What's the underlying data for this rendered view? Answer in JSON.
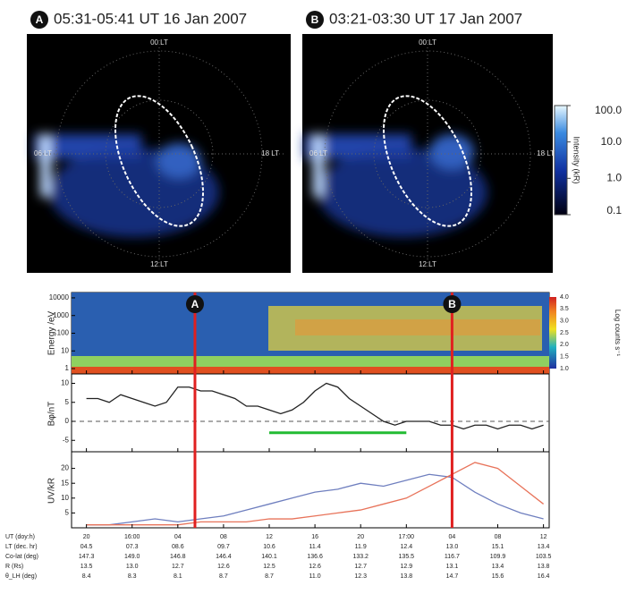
{
  "panels": [
    {
      "letter": "A",
      "title": "05:31-05:41 UT 16 Jan 2007",
      "lt": [
        "00 LT",
        "06 LT",
        "18 LT",
        "12 LT"
      ]
    },
    {
      "letter": "B",
      "title": "03:21-03:30 UT 17 Jan 2007",
      "lt": [
        "00 LT",
        "06 LT",
        "18 LT",
        "12 LT"
      ]
    }
  ],
  "colorbar": {
    "label": "Intensity (kR)",
    "ticks": [
      {
        "value": 100,
        "label": "100.0"
      },
      {
        "value": 10,
        "label": "10.0"
      },
      {
        "value": 1,
        "label": "1.0"
      },
      {
        "value": 0.1,
        "label": "0.1"
      }
    ]
  },
  "markers": [
    {
      "label": "A",
      "x": 9.5
    },
    {
      "label": "B",
      "x": 32
    }
  ],
  "chart_data": [
    {
      "type": "spectrogram",
      "ylabel": "Energy /eV",
      "log": true,
      "xlim": [
        -1.3,
        40.5
      ],
      "ylim": [
        0.5,
        20000
      ],
      "yticks": [
        1,
        10,
        100,
        1000,
        10000
      ],
      "colorbar": {
        "label": "Log counts s⁻¹",
        "ticks": [
          {
            "value": 4,
            "label": "4.0"
          },
          {
            "value": 3.5,
            "label": "3.5"
          },
          {
            "value": 3,
            "label": "3.0"
          },
          {
            "value": 2.5,
            "label": "2.5"
          },
          {
            "value": 2,
            "label": "2.0"
          },
          {
            "value": 1.5,
            "label": "1.5"
          },
          {
            "value": 1,
            "label": "1.0"
          }
        ]
      }
    },
    {
      "type": "line",
      "ylabel": "Bφ/nT",
      "xlim": [
        -1.3,
        40.5
      ],
      "ylim": [
        -8,
        12
      ],
      "yticks": [
        -5,
        0,
        5,
        10
      ],
      "zero_line": true,
      "x": [
        0,
        1,
        2,
        3,
        4,
        5,
        6,
        7,
        8,
        9,
        10,
        11,
        12,
        13,
        14,
        15,
        16,
        17,
        18,
        19,
        20,
        21,
        22,
        23,
        24,
        25,
        26,
        27,
        28,
        29,
        30,
        31,
        32,
        33,
        34,
        35,
        36,
        37,
        38,
        39,
        40
      ],
      "series": [
        {
          "color": "#222222",
          "values": [
            6,
            6,
            5,
            7,
            6,
            5,
            4,
            5,
            9,
            9,
            8,
            8,
            7,
            6,
            4,
            4,
            3,
            2,
            3,
            5,
            8,
            10,
            9,
            6,
            4,
            2,
            0,
            -1,
            0,
            0,
            0,
            -1,
            -1,
            -2,
            -1,
            -1,
            -2,
            -1,
            -1,
            -2,
            -1
          ]
        }
      ],
      "interval": {
        "color": "#22bb33",
        "x": [
          16,
          28
        ],
        "y": -3
      }
    },
    {
      "type": "line",
      "ylabel": "UV/kR",
      "xlim": [
        -1.3,
        40.5
      ],
      "ylim": [
        0,
        25
      ],
      "yticks": [
        5,
        10,
        15,
        20
      ],
      "x": [
        0,
        2,
        4,
        6,
        8,
        10,
        12,
        14,
        16,
        18,
        20,
        22,
        24,
        26,
        28,
        30,
        32,
        34,
        36,
        38,
        40
      ],
      "series": [
        {
          "color": "#6f7fbf",
          "values": [
            1,
            1,
            2,
            3,
            2,
            3,
            4,
            6,
            8,
            10,
            12,
            13,
            15,
            14,
            16,
            18,
            17,
            12,
            8,
            5,
            3
          ]
        },
        {
          "color": "#e8735a",
          "values": [
            1,
            1,
            1,
            1,
            1,
            2,
            2,
            2,
            3,
            3,
            4,
            5,
            6,
            8,
            10,
            14,
            18,
            22,
            20,
            14,
            8
          ]
        }
      ],
      "xticks": [
        {
          "value": 0,
          "label": "20"
        },
        {
          "value": 4,
          "label": "16:00"
        },
        {
          "value": 8,
          "label": "04"
        },
        {
          "value": 12,
          "label": "08"
        },
        {
          "value": 16,
          "label": "12"
        },
        {
          "value": 20,
          "label": "16"
        },
        {
          "value": 24,
          "label": "20"
        },
        {
          "value": 28,
          "label": "17:00"
        },
        {
          "value": 32,
          "label": "04"
        },
        {
          "value": 36,
          "label": "08"
        },
        {
          "value": 40,
          "label": "12"
        }
      ]
    }
  ],
  "table": {
    "row_labels": [
      "UT (doy:h)",
      "LT (dec. hr)",
      "Co-lat (deg)",
      "R (Rs)",
      "θ_LH (deg)"
    ],
    "rows": [
      [
        "04.5",
        "07.3",
        "08.6",
        "09.7",
        "10.6",
        "11.4",
        "11.9",
        "12.4",
        "13.0",
        "15.1",
        "13.4"
      ],
      [
        "147.3",
        "149.0",
        "146.8",
        "146.4",
        "140.1",
        "136.6",
        "133.2",
        "135.5",
        "116.7",
        "109.9",
        "103.5"
      ],
      [
        "13.5",
        "13.0",
        "12.7",
        "12.6",
        "12.5",
        "12.6",
        "12.7",
        "12.9",
        "13.1",
        "13.4",
        "13.8"
      ],
      [
        "8.4",
        "8.3",
        "8.1",
        "8.7",
        "8.7",
        "11.0",
        "12.3",
        "13.8",
        "14.7",
        "15.6",
        "16.4"
      ]
    ]
  }
}
